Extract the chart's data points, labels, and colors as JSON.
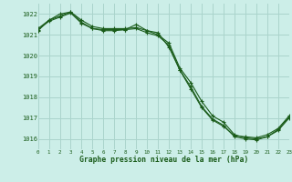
{
  "title": "Graphe pression niveau de la mer (hPa)",
  "bg_color": "#cceee8",
  "grid_color": "#aad4cc",
  "line_color": "#1a5c1a",
  "x_min": 0,
  "x_max": 23,
  "y_min": 1015.5,
  "y_max": 1022.5,
  "y_ticks": [
    1016,
    1017,
    1018,
    1019,
    1020,
    1021,
    1022
  ],
  "series1": {
    "x": [
      0,
      1,
      2,
      3,
      4,
      5,
      6,
      7,
      8,
      9,
      10,
      11,
      12,
      13,
      14,
      15,
      16,
      17,
      18,
      19,
      20,
      21,
      22,
      23
    ],
    "y": [
      1021.3,
      1021.7,
      1021.9,
      1022.1,
      1021.7,
      1021.4,
      1021.3,
      1021.3,
      1021.3,
      1021.35,
      1021.2,
      1021.0,
      1020.6,
      1019.4,
      1018.7,
      1017.8,
      1017.1,
      1016.8,
      1016.2,
      1016.05,
      1016.0,
      1016.1,
      1016.4,
      1017.0
    ]
  },
  "series2": {
    "x": [
      0,
      1,
      2,
      3,
      4,
      5,
      6,
      7,
      8,
      9,
      10,
      11,
      12,
      13,
      14,
      15,
      16,
      17,
      18,
      19,
      20,
      21,
      22,
      23
    ],
    "y": [
      1021.2,
      1021.7,
      1022.0,
      1022.1,
      1021.6,
      1021.3,
      1021.2,
      1021.2,
      1021.25,
      1021.5,
      1021.2,
      1021.1,
      1020.4,
      1019.3,
      1018.4,
      1017.5,
      1016.9,
      1016.6,
      1016.15,
      1016.1,
      1016.05,
      1016.2,
      1016.5,
      1017.1
    ]
  },
  "series3": {
    "x": [
      0,
      1,
      2,
      3,
      4,
      5,
      6,
      7,
      8,
      9,
      10,
      11,
      12,
      13,
      14,
      15,
      16,
      17,
      18,
      19,
      20,
      21,
      22,
      23
    ],
    "y": [
      1021.25,
      1021.65,
      1021.85,
      1022.05,
      1021.55,
      1021.3,
      1021.25,
      1021.25,
      1021.25,
      1021.3,
      1021.1,
      1020.95,
      1020.5,
      1019.3,
      1018.5,
      1017.55,
      1016.95,
      1016.65,
      1016.1,
      1016.0,
      1015.95,
      1016.1,
      1016.45,
      1017.05
    ]
  }
}
